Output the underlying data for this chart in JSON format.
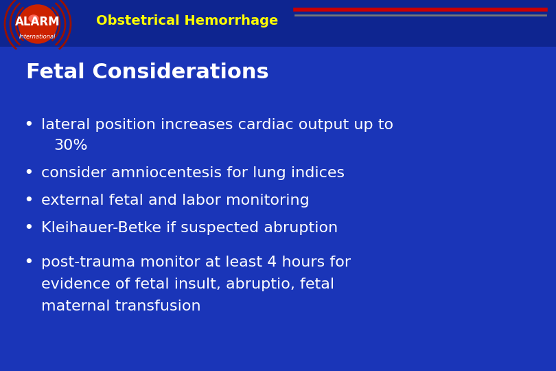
{
  "bg_color": "#1a35b8",
  "header_bg": "#0e2590",
  "title_text": "Obstetrical Hemorrhage",
  "title_color": "#ffff00",
  "header_line_color1": "#cc0000",
  "header_line_color2": "#777777",
  "section_title": "Fetal Considerations",
  "section_title_color": "#ffffff",
  "bullet_color": "#ffffff",
  "bullets_1to4": [
    "lateral position increases cardiac output up to",
    "    30%",
    "consider amniocentesis for lung indices",
    "external fetal and labor monitoring",
    "Kleihauer-Betke if suspected abruption"
  ],
  "last_bullet_lines": [
    "post-trauma monitor at least 4 hours for",
    "evidence of fetal insult, abruptio, fetal",
    "maternal transfusion"
  ],
  "alarm_text": "ALARM",
  "alarm_color": "#ffffff",
  "intl_text": "International",
  "intl_color": "#ffffff",
  "fig_width": 8.1,
  "fig_height": 5.4,
  "dpi": 100
}
